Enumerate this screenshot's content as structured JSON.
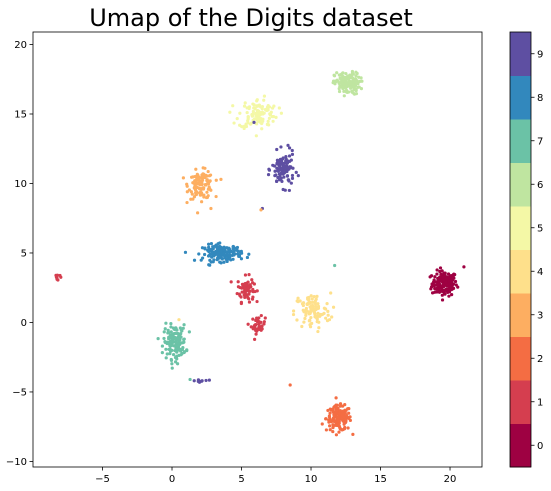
{
  "chart_data": {
    "type": "scatter",
    "title": "Umap of the Digits dataset",
    "xlabel": "",
    "ylabel": "",
    "xlim": [
      -10,
      22.3
    ],
    "ylim": [
      -10.4,
      20.9
    ],
    "x_ticks": [
      -5,
      0,
      5,
      10,
      15,
      20
    ],
    "y_ticks": [
      -10,
      -5,
      0,
      5,
      10,
      15,
      20
    ],
    "grid": false,
    "colormap": "Spectral",
    "colorbar": {
      "ticks": [
        "0",
        "1",
        "2",
        "3",
        "4",
        "5",
        "6",
        "7",
        "8",
        "9"
      ],
      "colors": [
        "#9e0142",
        "#d53e4f",
        "#f46d43",
        "#fdae61",
        "#fee08b",
        "#f4f8a6",
        "#bfe5a0",
        "#6bc2a6",
        "#3288bd",
        "#5e4fa2"
      ]
    },
    "clusters": [
      {
        "label": 0,
        "cx": 19.6,
        "cy": 2.8,
        "sx": 0.45,
        "sy": 0.45,
        "n": 160
      },
      {
        "label": 1,
        "cx": 5.3,
        "cy": 2.4,
        "sx": 0.3,
        "sy": 0.45,
        "n": 70
      },
      {
        "label": 1,
        "cx": 6.2,
        "cy": -0.2,
        "sx": 0.25,
        "sy": 0.3,
        "n": 40
      },
      {
        "label": 1,
        "cx": -8.2,
        "cy": 3.3,
        "sx": 0.15,
        "sy": 0.2,
        "n": 8
      },
      {
        "label": 2,
        "cx": 12.0,
        "cy": -6.9,
        "sx": 0.45,
        "sy": 0.45,
        "n": 150
      },
      {
        "label": 3,
        "cx": 2.1,
        "cy": 9.9,
        "sx": 0.45,
        "sy": 0.5,
        "n": 120
      },
      {
        "label": 4,
        "cx": 10.1,
        "cy": 0.8,
        "sx": 0.65,
        "sy": 0.65,
        "n": 100
      },
      {
        "label": 5,
        "cx": 6.2,
        "cy": 15.0,
        "sx": 0.7,
        "sy": 0.55,
        "n": 110
      },
      {
        "label": 6,
        "cx": 12.6,
        "cy": 17.2,
        "sx": 0.45,
        "sy": 0.4,
        "n": 150
      },
      {
        "label": 7,
        "cx": 0.2,
        "cy": -1.4,
        "sx": 0.4,
        "sy": 0.6,
        "n": 140
      },
      {
        "label": 8,
        "cx": 3.6,
        "cy": 5.0,
        "sx": 0.7,
        "sy": 0.3,
        "n": 150
      },
      {
        "label": 9,
        "cx": 8.0,
        "cy": 11.0,
        "sx": 0.4,
        "sy": 0.6,
        "n": 110
      },
      {
        "label": 9,
        "cx": 2.1,
        "cy": -4.2,
        "sx": 0.35,
        "sy": 0.05,
        "n": 10
      }
    ],
    "outliers": [
      {
        "label": 9,
        "x": 5.9,
        "y": 14.4
      },
      {
        "label": 9,
        "x": 6.5,
        "y": 8.2
      },
      {
        "label": 3,
        "x": 6.4,
        "y": 8.1
      },
      {
        "label": 7,
        "x": 11.7,
        "y": 4.1
      },
      {
        "label": 2,
        "x": 8.5,
        "y": -4.5
      },
      {
        "label": 7,
        "x": 1.3,
        "y": -4.1
      },
      {
        "label": 0,
        "x": 21.0,
        "y": 4.0
      },
      {
        "label": 4,
        "x": 0.5,
        "y": 0.2
      },
      {
        "label": 3,
        "x": 2.8,
        "y": 8.2
      }
    ]
  }
}
